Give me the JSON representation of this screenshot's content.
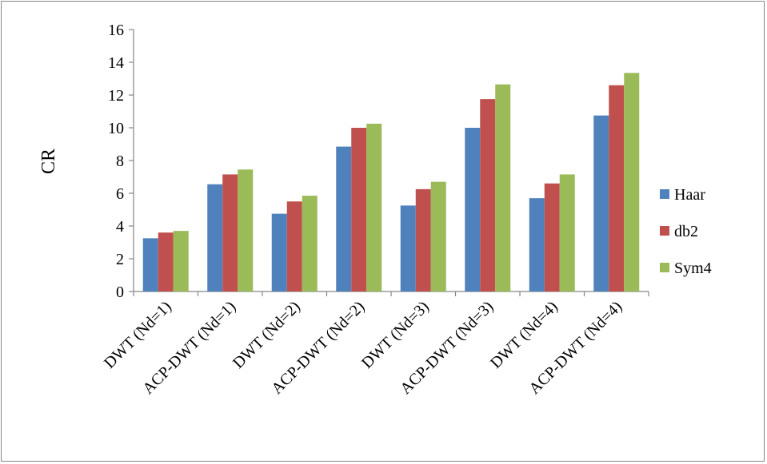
{
  "chart_data": {
    "type": "bar",
    "title": "",
    "xlabel": "",
    "ylabel": "CR",
    "ylim": [
      0,
      16
    ],
    "yticks": [
      0,
      2,
      4,
      6,
      8,
      10,
      12,
      14,
      16
    ],
    "grid": false,
    "legend_position": "right",
    "categories": [
      "DWT (Nd=1)",
      "ACP-DWT (Nd=1)",
      "DWT (Nd=2)",
      "ACP-DWT (Nd=2)",
      "DWT (Nd=3)",
      "ACP-DWT (Nd=3)",
      "DWT (Nd=4)",
      "ACP-DWT (Nd=4)"
    ],
    "series": [
      {
        "name": "Haar",
        "color": "#4F81BD",
        "values": [
          3.25,
          6.55,
          4.75,
          8.85,
          5.25,
          10.0,
          5.7,
          10.75
        ]
      },
      {
        "name": "db2",
        "color": "#C0504D",
        "values": [
          3.6,
          7.15,
          5.5,
          10.0,
          6.25,
          11.75,
          6.6,
          12.6
        ]
      },
      {
        "name": "Sym4",
        "color": "#9BBB59",
        "values": [
          3.7,
          7.45,
          5.85,
          10.25,
          6.7,
          12.65,
          7.15,
          13.35
        ]
      }
    ]
  }
}
